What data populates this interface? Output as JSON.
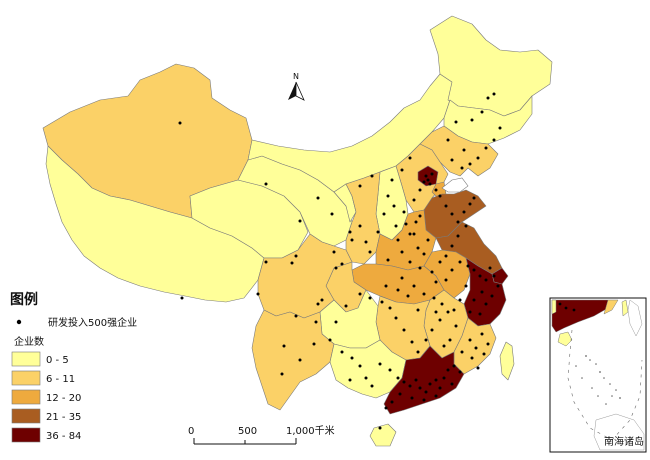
{
  "legend": {
    "title": "图例",
    "point_label": "研发投入500强企业",
    "class_title": "企业数",
    "classes": [
      {
        "label": "0 - 5",
        "color": "#ffff99"
      },
      {
        "label": "6 - 11",
        "color": "#fbd167"
      },
      {
        "label": "12 - 20",
        "color": "#eeaa3e"
      },
      {
        "label": "21 - 35",
        "color": "#a95d21"
      },
      {
        "label": "36 - 84",
        "color": "#6e0000"
      }
    ]
  },
  "north_arrow": {
    "label": "N"
  },
  "scale_bar": {
    "ticks": [
      "0",
      "500",
      "1,000千米"
    ]
  },
  "inset": {
    "label": "南海诸岛"
  },
  "colors": {
    "background": "#ffffff",
    "sea": "#ffffff",
    "border": "#7a7a7a",
    "point": "#000000"
  }
}
